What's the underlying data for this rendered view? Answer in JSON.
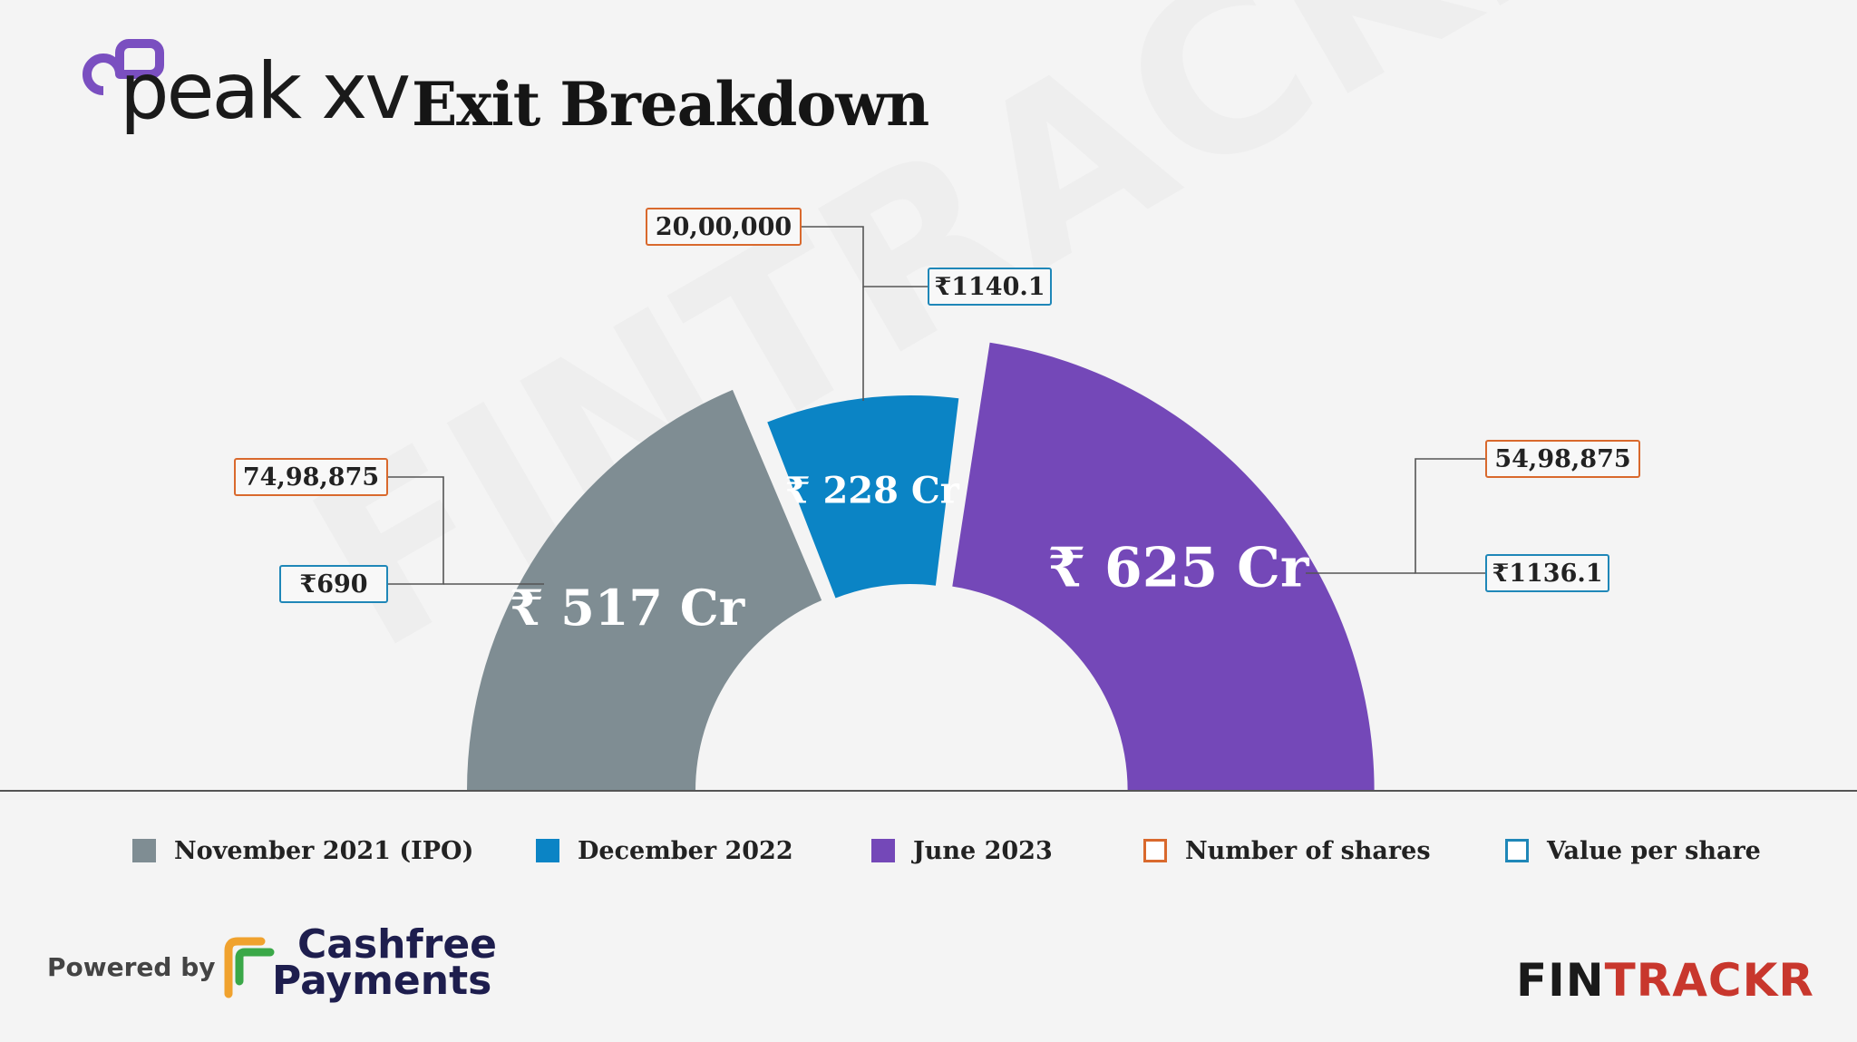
{
  "header": {
    "brand_name": "peak xv",
    "title": "Exit Breakdown"
  },
  "colors": {
    "november_2021": "#7f8d93",
    "december_2022": "#0b84c5",
    "june_2023": "#7448b8",
    "shares_border": "#d9692d",
    "value_border": "#1f87b8",
    "brand_purple": "#7a4fc0"
  },
  "chart_data": {
    "type": "pie",
    "variant": "semi-donut",
    "title": "Exit Breakdown",
    "legend_placement": "bottom",
    "series": [
      {
        "name": "November 2021 (IPO)",
        "value_cr": 517,
        "label": "₹ 517 Cr",
        "number_of_shares": "74,98,875",
        "value_per_share": "₹690",
        "color": "#7f8d93"
      },
      {
        "name": "December 2022",
        "value_cr": 228,
        "label": "₹ 228 Cr",
        "number_of_shares": "20,00,000",
        "value_per_share": "₹1140.1",
        "color": "#0b84c5"
      },
      {
        "name": "June 2023",
        "value_cr": 625,
        "label": "₹ 625 Cr",
        "number_of_shares": "54,98,875",
        "value_per_share": "₹1136.1",
        "color": "#7448b8"
      }
    ]
  },
  "legend": {
    "items": [
      {
        "label": "November 2021 (IPO)",
        "kind": "filled",
        "color": "#7f8d93"
      },
      {
        "label": "December 2022",
        "kind": "filled",
        "color": "#0b84c5"
      },
      {
        "label": "June 2023",
        "kind": "filled",
        "color": "#7448b8"
      },
      {
        "label": "Number of shares",
        "kind": "outline",
        "color": "#d9692d"
      },
      {
        "label": "Value per share",
        "kind": "outline",
        "color": "#1f87b8"
      }
    ]
  },
  "footer": {
    "powered_by": "Powered by",
    "sponsor_line1": "Cashfree",
    "sponsor_line2": "Payments",
    "publisher_part1": "FIN",
    "publisher_part2": "TRACKR",
    "watermark": "FINTRACKR"
  }
}
